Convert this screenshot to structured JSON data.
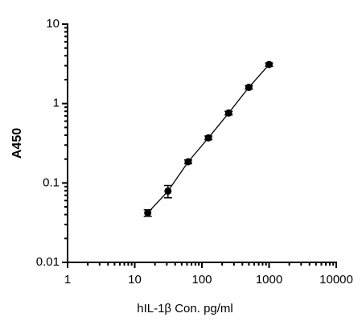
{
  "chart_data": {
    "type": "scatter",
    "x_label": "hIL-1β Con. pg/ml",
    "y_label": "A450",
    "x": [
      15.625,
      31.25,
      62.5,
      125,
      250,
      500,
      1000
    ],
    "series": [
      {
        "color": "#000000",
        "values": [
          0.042,
          0.079,
          0.185,
          0.37,
          0.76,
          1.6,
          3.1
        ],
        "errors": [
          0.004,
          0.014,
          0.01,
          0.02,
          0.04,
          0.08,
          0.15
        ]
      }
    ],
    "xlim": [
      1,
      10000
    ],
    "ylim": [
      0.01,
      10
    ],
    "xticks": [
      1,
      10,
      100,
      1000,
      10000
    ],
    "yticks": [
      0.01,
      0.1,
      1,
      10
    ],
    "xscale": "log",
    "yscale": "log",
    "fit_line": true
  }
}
